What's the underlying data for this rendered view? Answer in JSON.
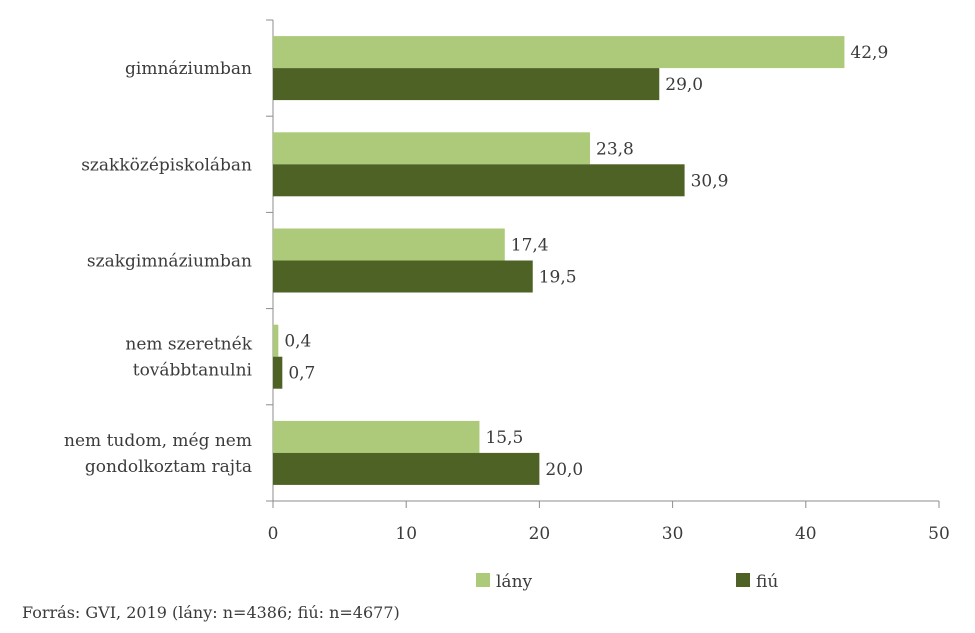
{
  "chart_data": {
    "type": "bar",
    "orientation": "horizontal",
    "title": "",
    "xlabel": "",
    "ylabel": "",
    "categories": [
      [
        "gimnáziumban"
      ],
      [
        "szakközépiskolában"
      ],
      [
        "szakgimnáziumban"
      ],
      [
        "nem szeretnék",
        "továbbtanulni"
      ],
      [
        "nem tudom, még nem",
        "gondolkoztam rajta"
      ]
    ],
    "series": [
      {
        "name": "lány",
        "color": "#adc97a",
        "values": [
          42.9,
          23.8,
          17.4,
          0.4,
          15.5
        ],
        "labels": [
          "42,9",
          "23,8",
          "17,4",
          "0,4",
          "15,5"
        ]
      },
      {
        "name": "fiú",
        "color": "#4e6226",
        "values": [
          29.0,
          30.9,
          19.5,
          0.7,
          20.0
        ],
        "labels": [
          "29,0",
          "30,9",
          "19,5",
          "0,7",
          "20,0"
        ]
      }
    ],
    "xlim": [
      0,
      50
    ],
    "xticks": [
      0,
      10,
      20,
      30,
      40,
      50
    ],
    "grid": false,
    "legend_position": "bottom"
  },
  "source_note": "Forrás: GVI, 2019 (lány: n=4386; fiú: n=4677)"
}
